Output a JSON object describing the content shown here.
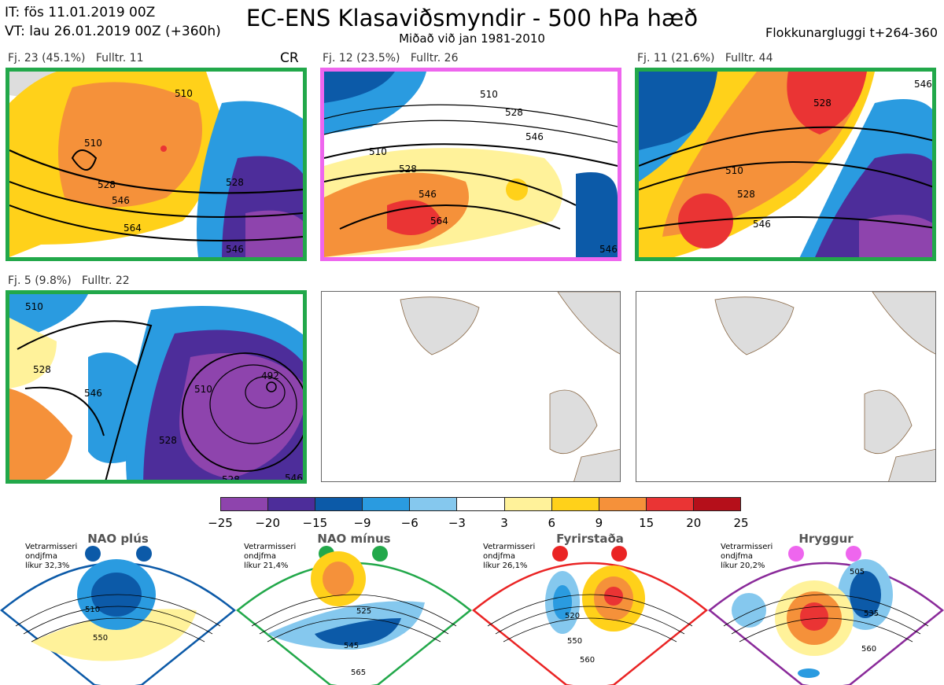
{
  "header": {
    "initial_time": "IT: fös 11.01.2019 00Z",
    "valid_time": "VT: lau 26.01.2019 00Z  (+360h)",
    "title": "EC-ENS Klasaviðsmyndir - 500 hPa hæð",
    "subtitle": "Miðað við jan 1981-2010",
    "window": "Flokkunargluggi t+264-360"
  },
  "panels": [
    {
      "label": "Fj. 23 (45.1%)   Fulltr. 11",
      "tag": "CR",
      "border": "#22a84a",
      "contours": [
        "510",
        "528",
        "546",
        "564",
        "546",
        "528",
        "510"
      ]
    },
    {
      "label": "Fj. 12 (23.5%)   Fulltr. 26",
      "border": "#ee66ee",
      "contours": [
        "510",
        "528",
        "546",
        "510",
        "528",
        "546",
        "564",
        "546"
      ]
    },
    {
      "label": "Fj. 11 (21.6%)   Fulltr. 44",
      "border": "#22a84a",
      "contours": [
        "528",
        "510",
        "528",
        "546",
        "546"
      ]
    },
    {
      "label": "Fj. 5 (9.8%)   Fulltr. 22",
      "border": "#22a84a",
      "contours": [
        "510",
        "528",
        "546",
        "528",
        "510",
        "492",
        "528",
        "546"
      ]
    }
  ],
  "colorbar": {
    "colors": [
      "#8e44ad",
      "#4d2d9a",
      "#0c5aa8",
      "#2a9be0",
      "#85c8ee",
      "#ffffff",
      "#fff29a",
      "#ffd11a",
      "#f5913a",
      "#ea3434",
      "#b50f1a"
    ],
    "ticks": [
      "−25",
      "−20",
      "−15",
      "−9",
      "−6",
      "−3",
      "3",
      "6",
      "9",
      "15",
      "20",
      "25"
    ]
  },
  "regimes": [
    {
      "title": "NAO plús",
      "info": "Vetrarmisseri\nondjfma\nlíkur 32,3%",
      "color": "#0c5aa8",
      "contours": [
        "510",
        "550"
      ]
    },
    {
      "title": "NAO mínus",
      "info": "Vetrarmisseri\nondjfma\nlíkur 21,4%",
      "color": "#22a84a",
      "contours": [
        "525",
        "545",
        "565"
      ]
    },
    {
      "title": "Fyrirstaða",
      "info": "Vetrarmisseri\nondjfma\nlíkur 26,1%",
      "color": "#ea2424",
      "contours": [
        "520",
        "550",
        "560"
      ]
    },
    {
      "title": "Hryggur",
      "info": "Vetrarmisseri\nondjfma\nlíkur 20,2%",
      "color": "#ee66ee",
      "contours": [
        "505",
        "535",
        "560"
      ]
    }
  ]
}
